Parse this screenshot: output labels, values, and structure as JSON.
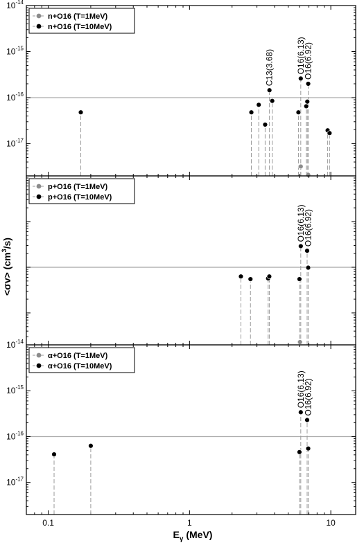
{
  "chart_data": {
    "type": "scatter",
    "x_scale": "log",
    "y_scale": "log",
    "xlim": [
      0.07,
      15
    ],
    "xticks": [
      0.1,
      1,
      10
    ],
    "xtick_labels": [
      "0.1",
      "1",
      "10"
    ],
    "xlabel_main": "E",
    "xlabel_sub": "γ",
    "xlabel_unit": " (MeV)",
    "ylabel_main": "<σv> (cm",
    "ylabel_sup": "3",
    "ylabel_end": "/s)",
    "colors": {
      "t1": "#8c8c8c",
      "t10": "#000000",
      "stem": "#9a9a9a",
      "refline": "#aaaaaa"
    },
    "panels": [
      {
        "ylim": [
          2e-18,
          1e-14
        ],
        "refline": 1e-16,
        "yticks": [
          {
            "value": 1e-17,
            "base": "10",
            "exp": "-17"
          },
          {
            "value": 1e-16,
            "base": "10",
            "exp": "-16"
          },
          {
            "value": 1e-15,
            "base": "10",
            "exp": "-15"
          },
          {
            "value": 1e-14,
            "base": "10",
            "exp": "-14"
          }
        ],
        "legend": [
          {
            "label": "n+O16 (T=1MeV)",
            "color": "#8c8c8c"
          },
          {
            "label": "n+O16 (T=10MeV)",
            "color": "#000000"
          }
        ],
        "series_t1": [
          [
            6.13,
            3.2e-18
          ],
          [
            6.92,
            2.1e-18
          ]
        ],
        "series_t10": [
          [
            0.17,
            4.8e-17
          ],
          [
            2.74,
            4.8e-17
          ],
          [
            3.09,
            7e-17
          ],
          [
            3.43,
            2.6e-17
          ],
          [
            3.68,
            1.45e-16
          ],
          [
            3.85,
            8.5e-17
          ],
          [
            5.9,
            4.8e-17
          ],
          [
            6.13,
            2.6e-16
          ],
          [
            6.7,
            6.5e-17
          ],
          [
            6.82,
            8.2e-17
          ],
          [
            6.92,
            2e-16
          ],
          [
            9.5,
            1.95e-17
          ],
          [
            9.8,
            1.7e-17
          ]
        ],
        "annotations": [
          {
            "text": "C13(3.68)",
            "x": 3.68,
            "y": 1.45e-16
          },
          {
            "text": "O16(6.13)",
            "x": 6.13,
            "y": 2.6e-16
          },
          {
            "text": "O16(6.92)",
            "x": 6.92,
            "y": 2e-16
          }
        ]
      },
      {
        "ylim": [
          2e-18,
          1e-14
        ],
        "refline": 1e-16,
        "yticks": [
          {
            "value": 1e-17,
            "base": "",
            "exp": ""
          },
          {
            "value": 1e-16,
            "base": "",
            "exp": ""
          },
          {
            "value": 1e-15,
            "base": "",
            "exp": ""
          },
          {
            "value": 1e-14,
            "base": "",
            "exp": ""
          }
        ],
        "legend": [
          {
            "label": "p+O16 (T=1MeV)",
            "color": "#8c8c8c"
          },
          {
            "label": "p+O16 (T=10MeV)",
            "color": "#000000"
          }
        ],
        "series_t1": [
          [
            6.05,
            2.3e-18
          ]
        ],
        "series_t10": [
          [
            2.31,
            6.3e-17
          ],
          [
            2.7,
            5.5e-17
          ],
          [
            3.6,
            5.7e-17
          ],
          [
            3.67,
            6.3e-17
          ],
          [
            6.0,
            5.5e-17
          ],
          [
            6.13,
            2.9e-16
          ],
          [
            6.8,
            2.3e-16
          ],
          [
            6.92,
            9.8e-17
          ]
        ],
        "annotations": [
          {
            "text": "O16(6.13)",
            "x": 6.13,
            "y": 2.9e-16
          },
          {
            "text": "O16(6.92)",
            "x": 6.92,
            "y": 2.3e-16
          }
        ]
      },
      {
        "ylim": [
          2e-18,
          1e-14
        ],
        "refline": 1e-16,
        "yticks": [
          {
            "value": 1e-17,
            "base": "10",
            "exp": "-17"
          },
          {
            "value": 1e-16,
            "base": "10",
            "exp": "-16"
          },
          {
            "value": 1e-15,
            "base": "10",
            "exp": "-15"
          },
          {
            "value": 1e-14,
            "base": "10",
            "exp": "-14"
          }
        ],
        "legend": [
          {
            "label": "α+O16 (T=1MeV)",
            "color": "#8c8c8c"
          },
          {
            "label": "α+O16 (T=10MeV)",
            "color": "#000000"
          }
        ],
        "series_t1": [],
        "series_t10": [
          [
            0.11,
            4.1e-17
          ],
          [
            0.2,
            6.3e-17
          ],
          [
            6.0,
            4.6e-17
          ],
          [
            6.13,
            3.4e-16
          ],
          [
            6.8,
            2.3e-16
          ],
          [
            6.92,
            5.5e-17
          ]
        ],
        "annotations": [
          {
            "text": "O16(6.13)",
            "x": 6.13,
            "y": 3.4e-16
          },
          {
            "text": "O16(6.92)",
            "x": 6.92,
            "y": 2.3e-16
          }
        ]
      }
    ]
  }
}
